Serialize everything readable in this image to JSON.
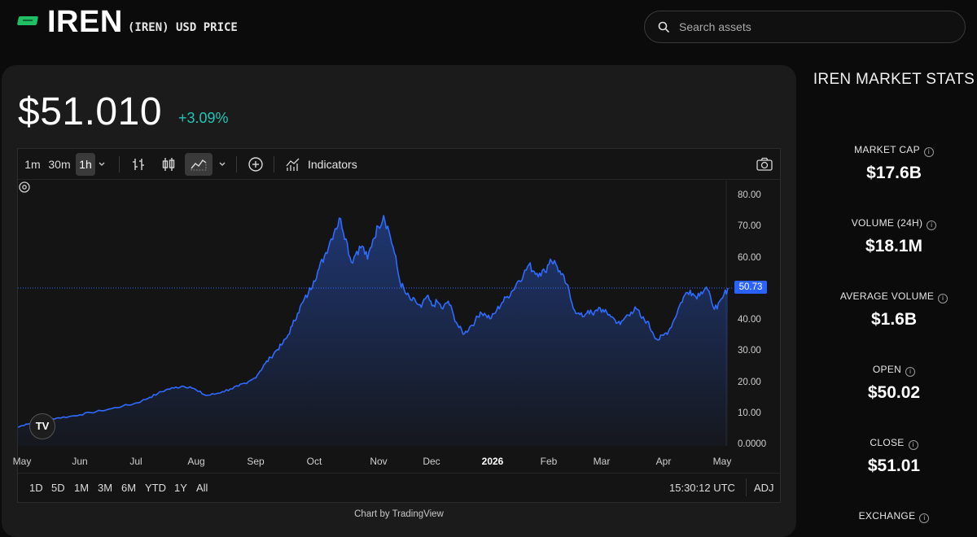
{
  "header": {
    "ticker": "IREN",
    "subtitle": "(IREN) USD PRICE",
    "search_placeholder": "Search assets"
  },
  "price_panel": {
    "price": "$51.010",
    "change": "+3.09%",
    "change_color": "#20c5b5"
  },
  "toolbar": {
    "intervals": [
      "1m",
      "30m",
      "1h"
    ],
    "active_interval": "1h",
    "indicators_label": "Indicators",
    "icons": [
      "bar-chart-icon",
      "candlestick-icon",
      "area-chart-icon",
      "chevron-down-icon",
      "add-circle-icon",
      "indicators-icon",
      "camera-icon"
    ]
  },
  "chart_data": {
    "type": "area",
    "ylim": [
      0,
      80
    ],
    "y_ticks": [
      "80.00",
      "70.00",
      "60.00",
      "50.00",
      "40.00",
      "30.00",
      "20.00",
      "10.00",
      "0.0000"
    ],
    "x_ticks": [
      "May",
      "Jun",
      "Jul",
      "Aug",
      "Sep",
      "Oct",
      "Nov",
      "Dec",
      "2026",
      "Feb",
      "Mar",
      "Apr",
      "May"
    ],
    "bold_tick": "2026",
    "last_price_label": "50.73",
    "last_price": 50.73,
    "line_color": "#2f6bff",
    "points": [
      [
        0,
        6.0
      ],
      [
        6,
        7.0
      ],
      [
        12,
        7.5
      ],
      [
        18,
        8.2
      ],
      [
        24,
        8.6
      ],
      [
        30,
        9.0
      ],
      [
        38,
        9.4
      ],
      [
        46,
        10.0
      ],
      [
        54,
        10.7
      ],
      [
        62,
        11.3
      ],
      [
        70,
        12.0
      ],
      [
        78,
        12.8
      ],
      [
        86,
        13.5
      ],
      [
        92,
        14.4
      ],
      [
        98,
        15.6
      ],
      [
        104,
        16.8
      ],
      [
        110,
        18.0
      ],
      [
        116,
        18.6
      ],
      [
        122,
        19.2
      ],
      [
        128,
        19.0
      ],
      [
        134,
        17.5
      ],
      [
        140,
        16.2
      ],
      [
        146,
        16.6
      ],
      [
        152,
        17.4
      ],
      [
        158,
        18.3
      ],
      [
        164,
        19.2
      ],
      [
        170,
        20.0
      ],
      [
        176,
        21.8
      ],
      [
        180,
        24.0
      ],
      [
        184,
        26.5
      ],
      [
        188,
        28.4
      ],
      [
        192,
        30.6
      ],
      [
        196,
        32.4
      ],
      [
        200,
        34.8
      ],
      [
        204,
        38.6
      ],
      [
        208,
        42.6
      ],
      [
        212,
        46.2
      ],
      [
        216,
        49.0
      ],
      [
        220,
        53.0
      ],
      [
        224,
        57.0
      ],
      [
        228,
        61.0
      ],
      [
        232,
        65.5
      ],
      [
        236,
        69.8
      ],
      [
        240,
        73.0
      ],
      [
        244,
        66.5
      ],
      [
        248,
        59.0
      ],
      [
        252,
        62.5
      ],
      [
        256,
        64.2
      ],
      [
        260,
        60.0
      ],
      [
        264,
        66.2
      ],
      [
        268,
        70.5
      ],
      [
        272,
        74.0
      ],
      [
        276,
        69.0
      ],
      [
        280,
        62.0
      ],
      [
        284,
        53.0
      ],
      [
        288,
        49.2
      ],
      [
        292,
        47.0
      ],
      [
        296,
        46.2
      ],
      [
        300,
        44.5
      ],
      [
        304,
        48.0
      ],
      [
        308,
        45.0
      ],
      [
        312,
        46.3
      ],
      [
        316,
        44.0
      ],
      [
        320,
        46.5
      ],
      [
        324,
        42.0
      ],
      [
        328,
        38.0
      ],
      [
        332,
        36.0
      ],
      [
        336,
        38.2
      ],
      [
        340,
        40.0
      ],
      [
        344,
        43.0
      ],
      [
        348,
        42.0
      ],
      [
        352,
        41.0
      ],
      [
        356,
        43.5
      ],
      [
        360,
        46.0
      ],
      [
        364,
        48.0
      ],
      [
        368,
        50.0
      ],
      [
        372,
        53.0
      ],
      [
        376,
        55.0
      ],
      [
        380,
        58.2
      ],
      [
        384,
        56.0
      ],
      [
        388,
        55.5
      ],
      [
        392,
        56.0
      ],
      [
        396,
        60.0
      ],
      [
        400,
        58.5
      ],
      [
        404,
        55.0
      ],
      [
        408,
        52.0
      ],
      [
        412,
        46.0
      ],
      [
        416,
        42.5
      ],
      [
        420,
        41.5
      ],
      [
        424,
        43.5
      ],
      [
        428,
        42.0
      ],
      [
        432,
        44.5
      ],
      [
        436,
        43.0
      ],
      [
        440,
        42.2
      ],
      [
        444,
        40.5
      ],
      [
        448,
        39.0
      ],
      [
        452,
        41.5
      ],
      [
        456,
        43.0
      ],
      [
        460,
        44.0
      ],
      [
        464,
        41.0
      ],
      [
        468,
        40.0
      ],
      [
        472,
        36.5
      ],
      [
        476,
        34.0
      ],
      [
        480,
        35.5
      ],
      [
        484,
        37.0
      ],
      [
        488,
        40.5
      ],
      [
        492,
        45.0
      ],
      [
        496,
        48.5
      ],
      [
        500,
        50.0
      ],
      [
        504,
        48.0
      ],
      [
        508,
        49.5
      ],
      [
        512,
        51.0
      ],
      [
        516,
        46.0
      ],
      [
        520,
        44.0
      ],
      [
        524,
        47.5
      ],
      [
        528,
        50.73
      ]
    ]
  },
  "range_bar": {
    "ranges": [
      "1D",
      "5D",
      "1M",
      "3M",
      "6M",
      "YTD",
      "1Y",
      "All"
    ],
    "clock": "15:30:12 UTC",
    "adj": "ADJ"
  },
  "attribution": "Chart by TradingView",
  "stats": {
    "title": "IREN MARKET STATS",
    "items": [
      {
        "label": "MARKET CAP",
        "value": "$17.6B"
      },
      {
        "label": "VOLUME (24H)",
        "value": "$18.1M"
      },
      {
        "label": "AVERAGE VOLUME",
        "value": "$1.6B"
      },
      {
        "label": "OPEN",
        "value": "$50.02"
      },
      {
        "label": "CLOSE",
        "value": "$51.01"
      },
      {
        "label": "EXCHANGE",
        "value": ""
      }
    ]
  }
}
